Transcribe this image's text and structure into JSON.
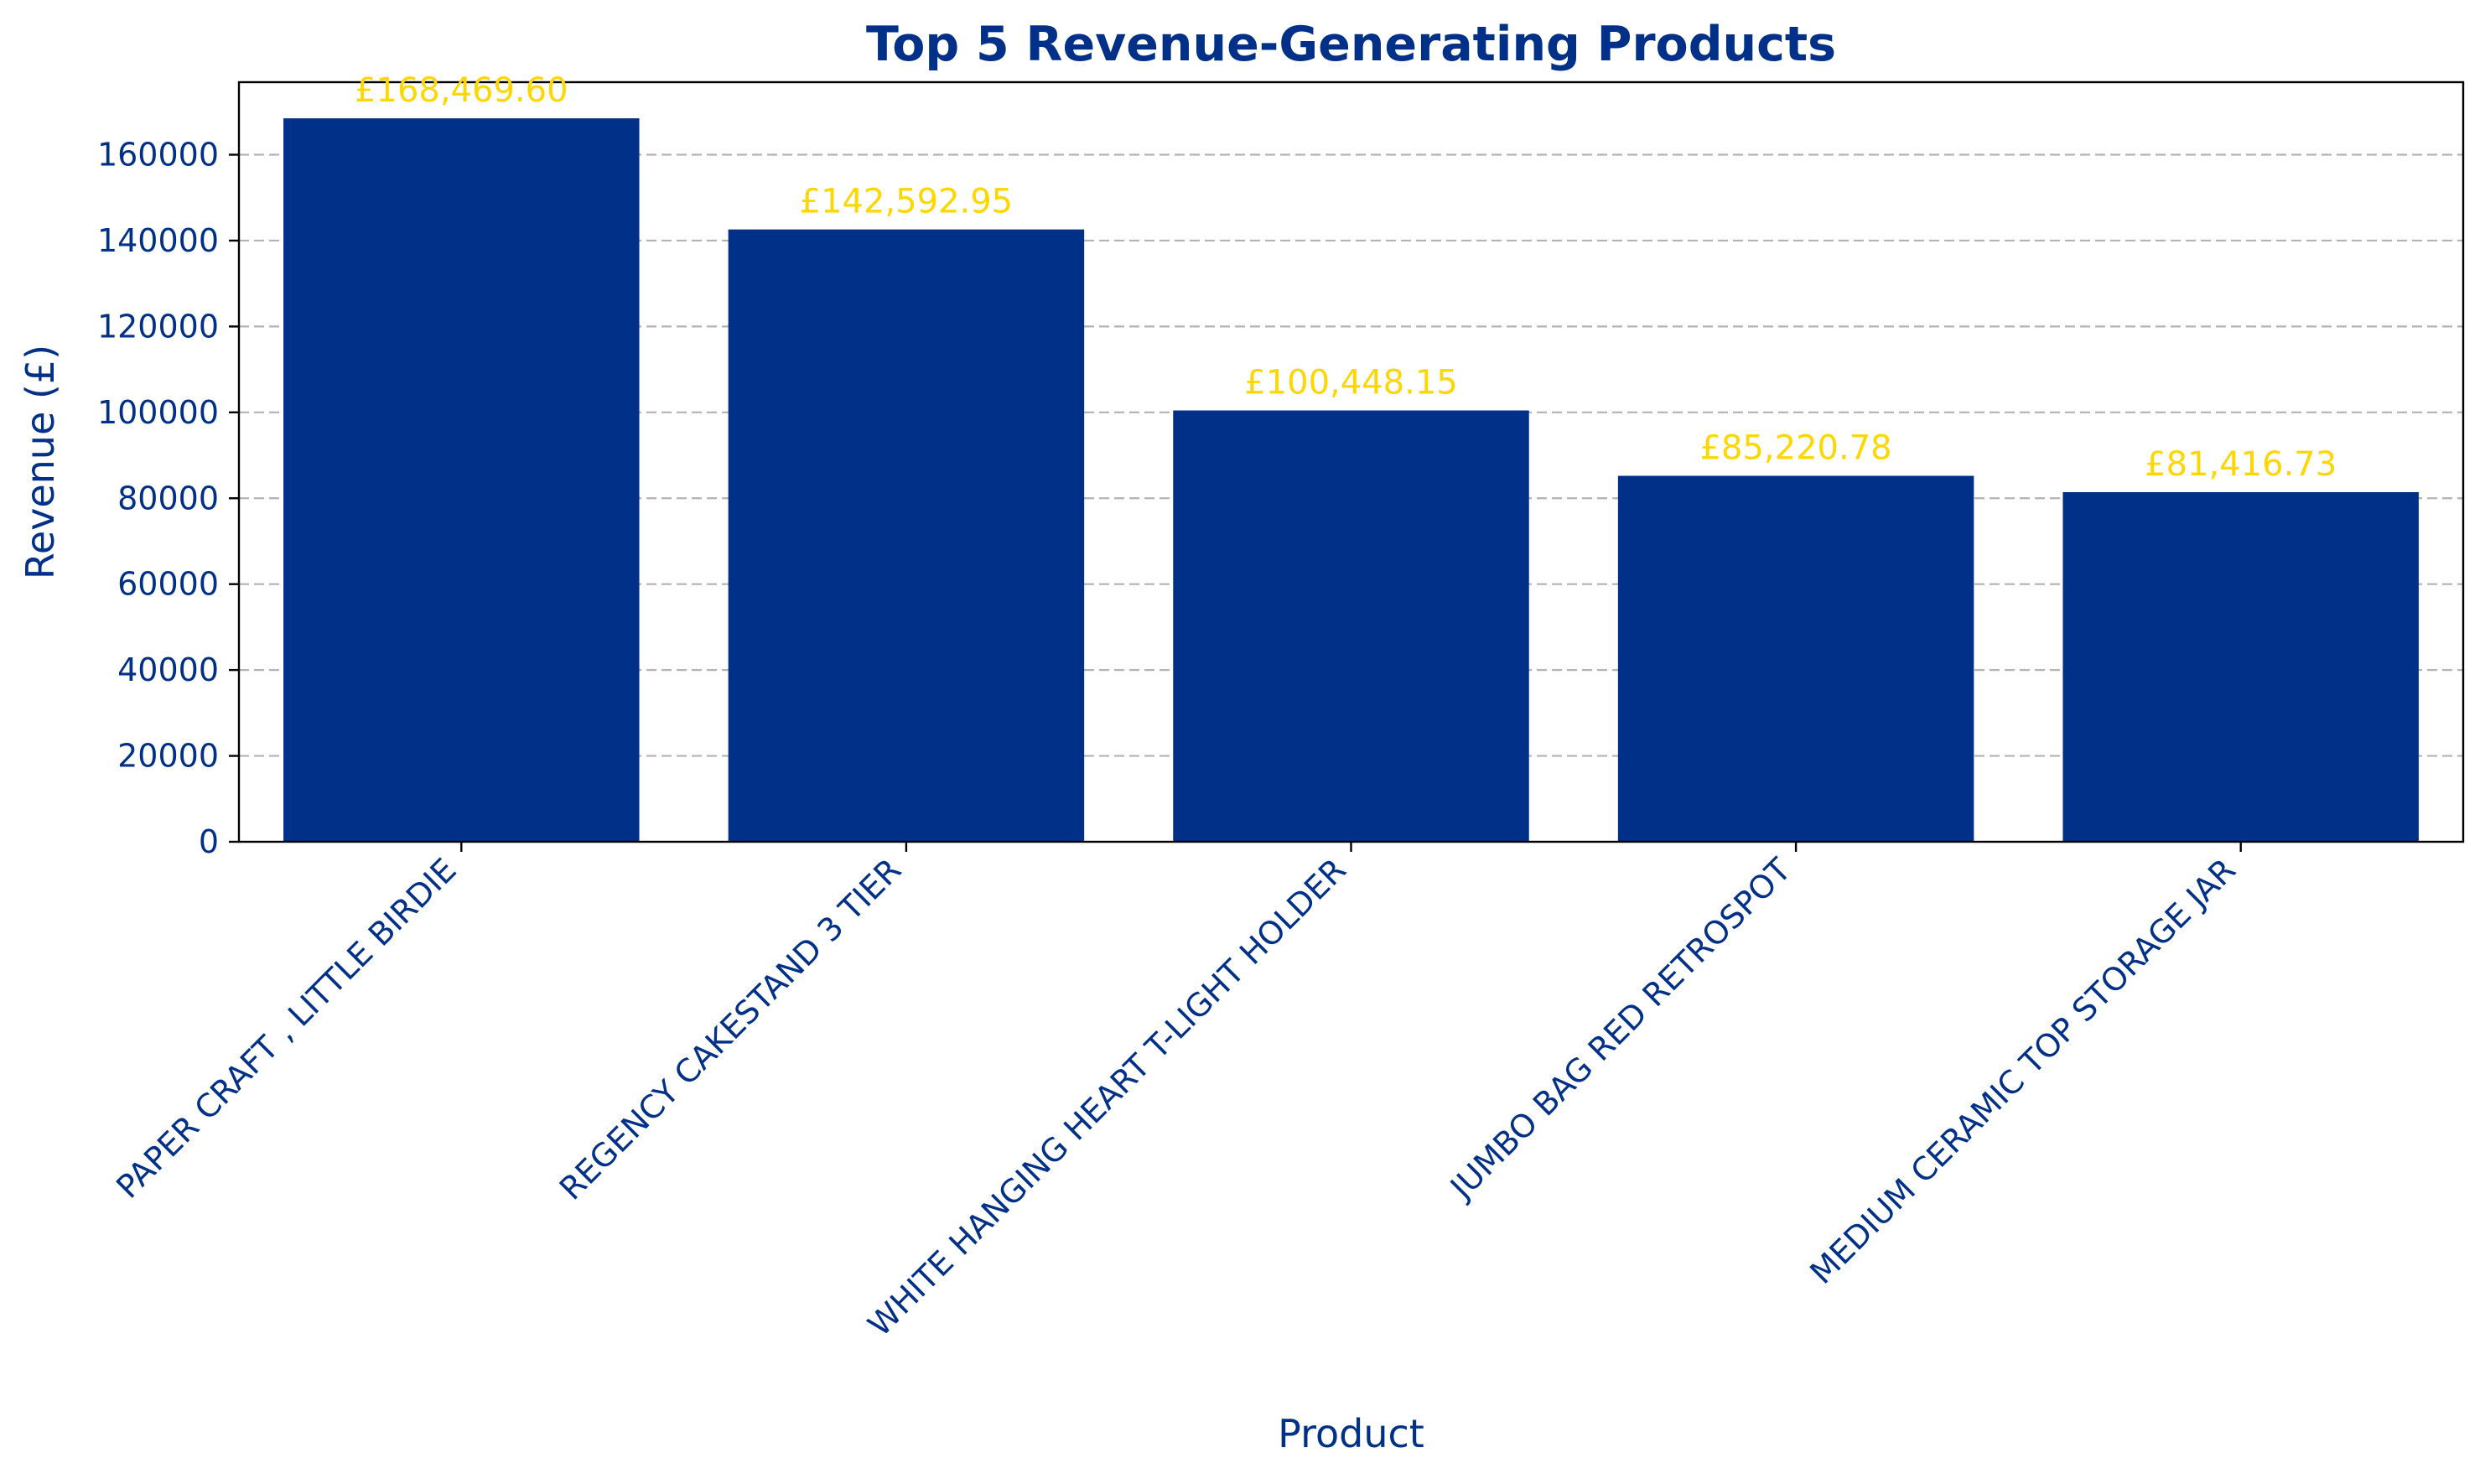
{
  "chart_data": {
    "type": "bar",
    "title": "Top 5 Revenue-Generating Products",
    "xlabel": "Product",
    "ylabel": "Revenue (£)",
    "categories": [
      "PAPER CRAFT , LITTLE BIRDIE",
      "REGENCY CAKESTAND 3 TIER",
      "WHITE HANGING HEART T-LIGHT HOLDER",
      "JUMBO BAG RED RETROSPOT",
      "MEDIUM CERAMIC TOP STORAGE JAR"
    ],
    "values": [
      168469.6,
      142592.95,
      100448.15,
      85220.78,
      81416.73
    ],
    "data_labels": [
      "£168,469.60",
      "£142,592.95",
      "£100,448.15",
      "£85,220.78",
      "£81,416.73"
    ],
    "ylim": [
      0,
      176893
    ],
    "yticks": [
      "0",
      "20000",
      "40000",
      "60000",
      "80000",
      "100000",
      "120000",
      "140000",
      "160000"
    ],
    "grid": "y-dashed",
    "legend": "none"
  },
  "colors": {
    "bar": "#003087",
    "text": "#003087",
    "data_label": "#FFD700",
    "grid": "#b3b3b3",
    "background": "#ffffff"
  }
}
